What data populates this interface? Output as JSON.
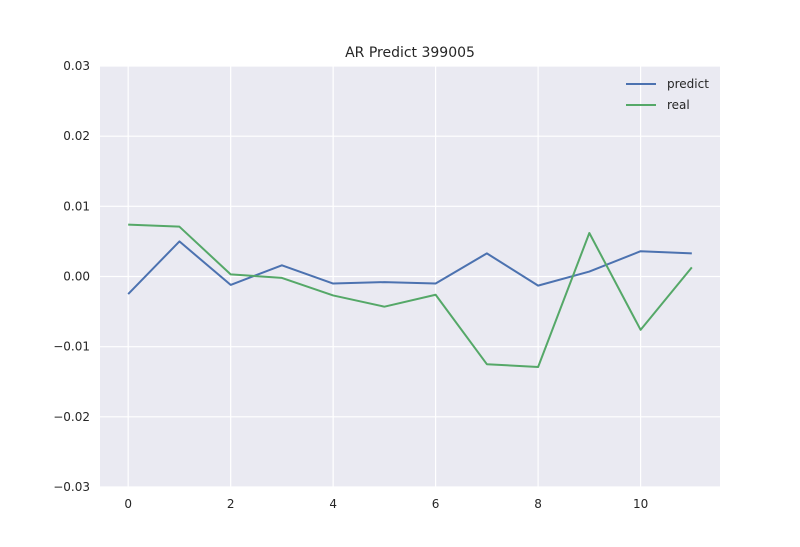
{
  "chart_data": {
    "type": "line",
    "title": "AR Predict 399005",
    "xlabel": "",
    "ylabel": "",
    "x": [
      0,
      1,
      2,
      3,
      4,
      5,
      6,
      7,
      8,
      9,
      10,
      11
    ],
    "series": [
      {
        "name": "predict",
        "color": "#4c72b0",
        "values": [
          -0.0025,
          0.005,
          -0.0012,
          0.0016,
          -0.001,
          -0.0008,
          -0.001,
          0.0033,
          -0.0013,
          0.0007,
          0.0036,
          0.0033
        ]
      },
      {
        "name": "real",
        "color": "#55a868",
        "values": [
          0.0074,
          0.0071,
          0.0003,
          -0.0002,
          -0.0027,
          -0.0043,
          -0.0026,
          -0.0125,
          -0.0129,
          0.0062,
          -0.0076,
          0.0013
        ]
      }
    ],
    "xlim": [
      -0.55,
      11.55
    ],
    "ylim": [
      -0.03,
      0.03
    ],
    "xticks": [
      0,
      2,
      4,
      6,
      8,
      10
    ],
    "xtick_labels": [
      "0",
      "2",
      "4",
      "6",
      "8",
      "10"
    ],
    "yticks": [
      -0.03,
      -0.02,
      -0.01,
      0.0,
      0.01,
      0.02,
      0.03
    ],
    "ytick_labels": [
      "−0.03",
      "−0.02",
      "−0.01",
      "0.00",
      "0.01",
      "0.02",
      "0.03"
    ],
    "grid": true,
    "legend_position": "top-right",
    "background_color": "#eaeaf2",
    "grid_color": "#ffffff"
  }
}
